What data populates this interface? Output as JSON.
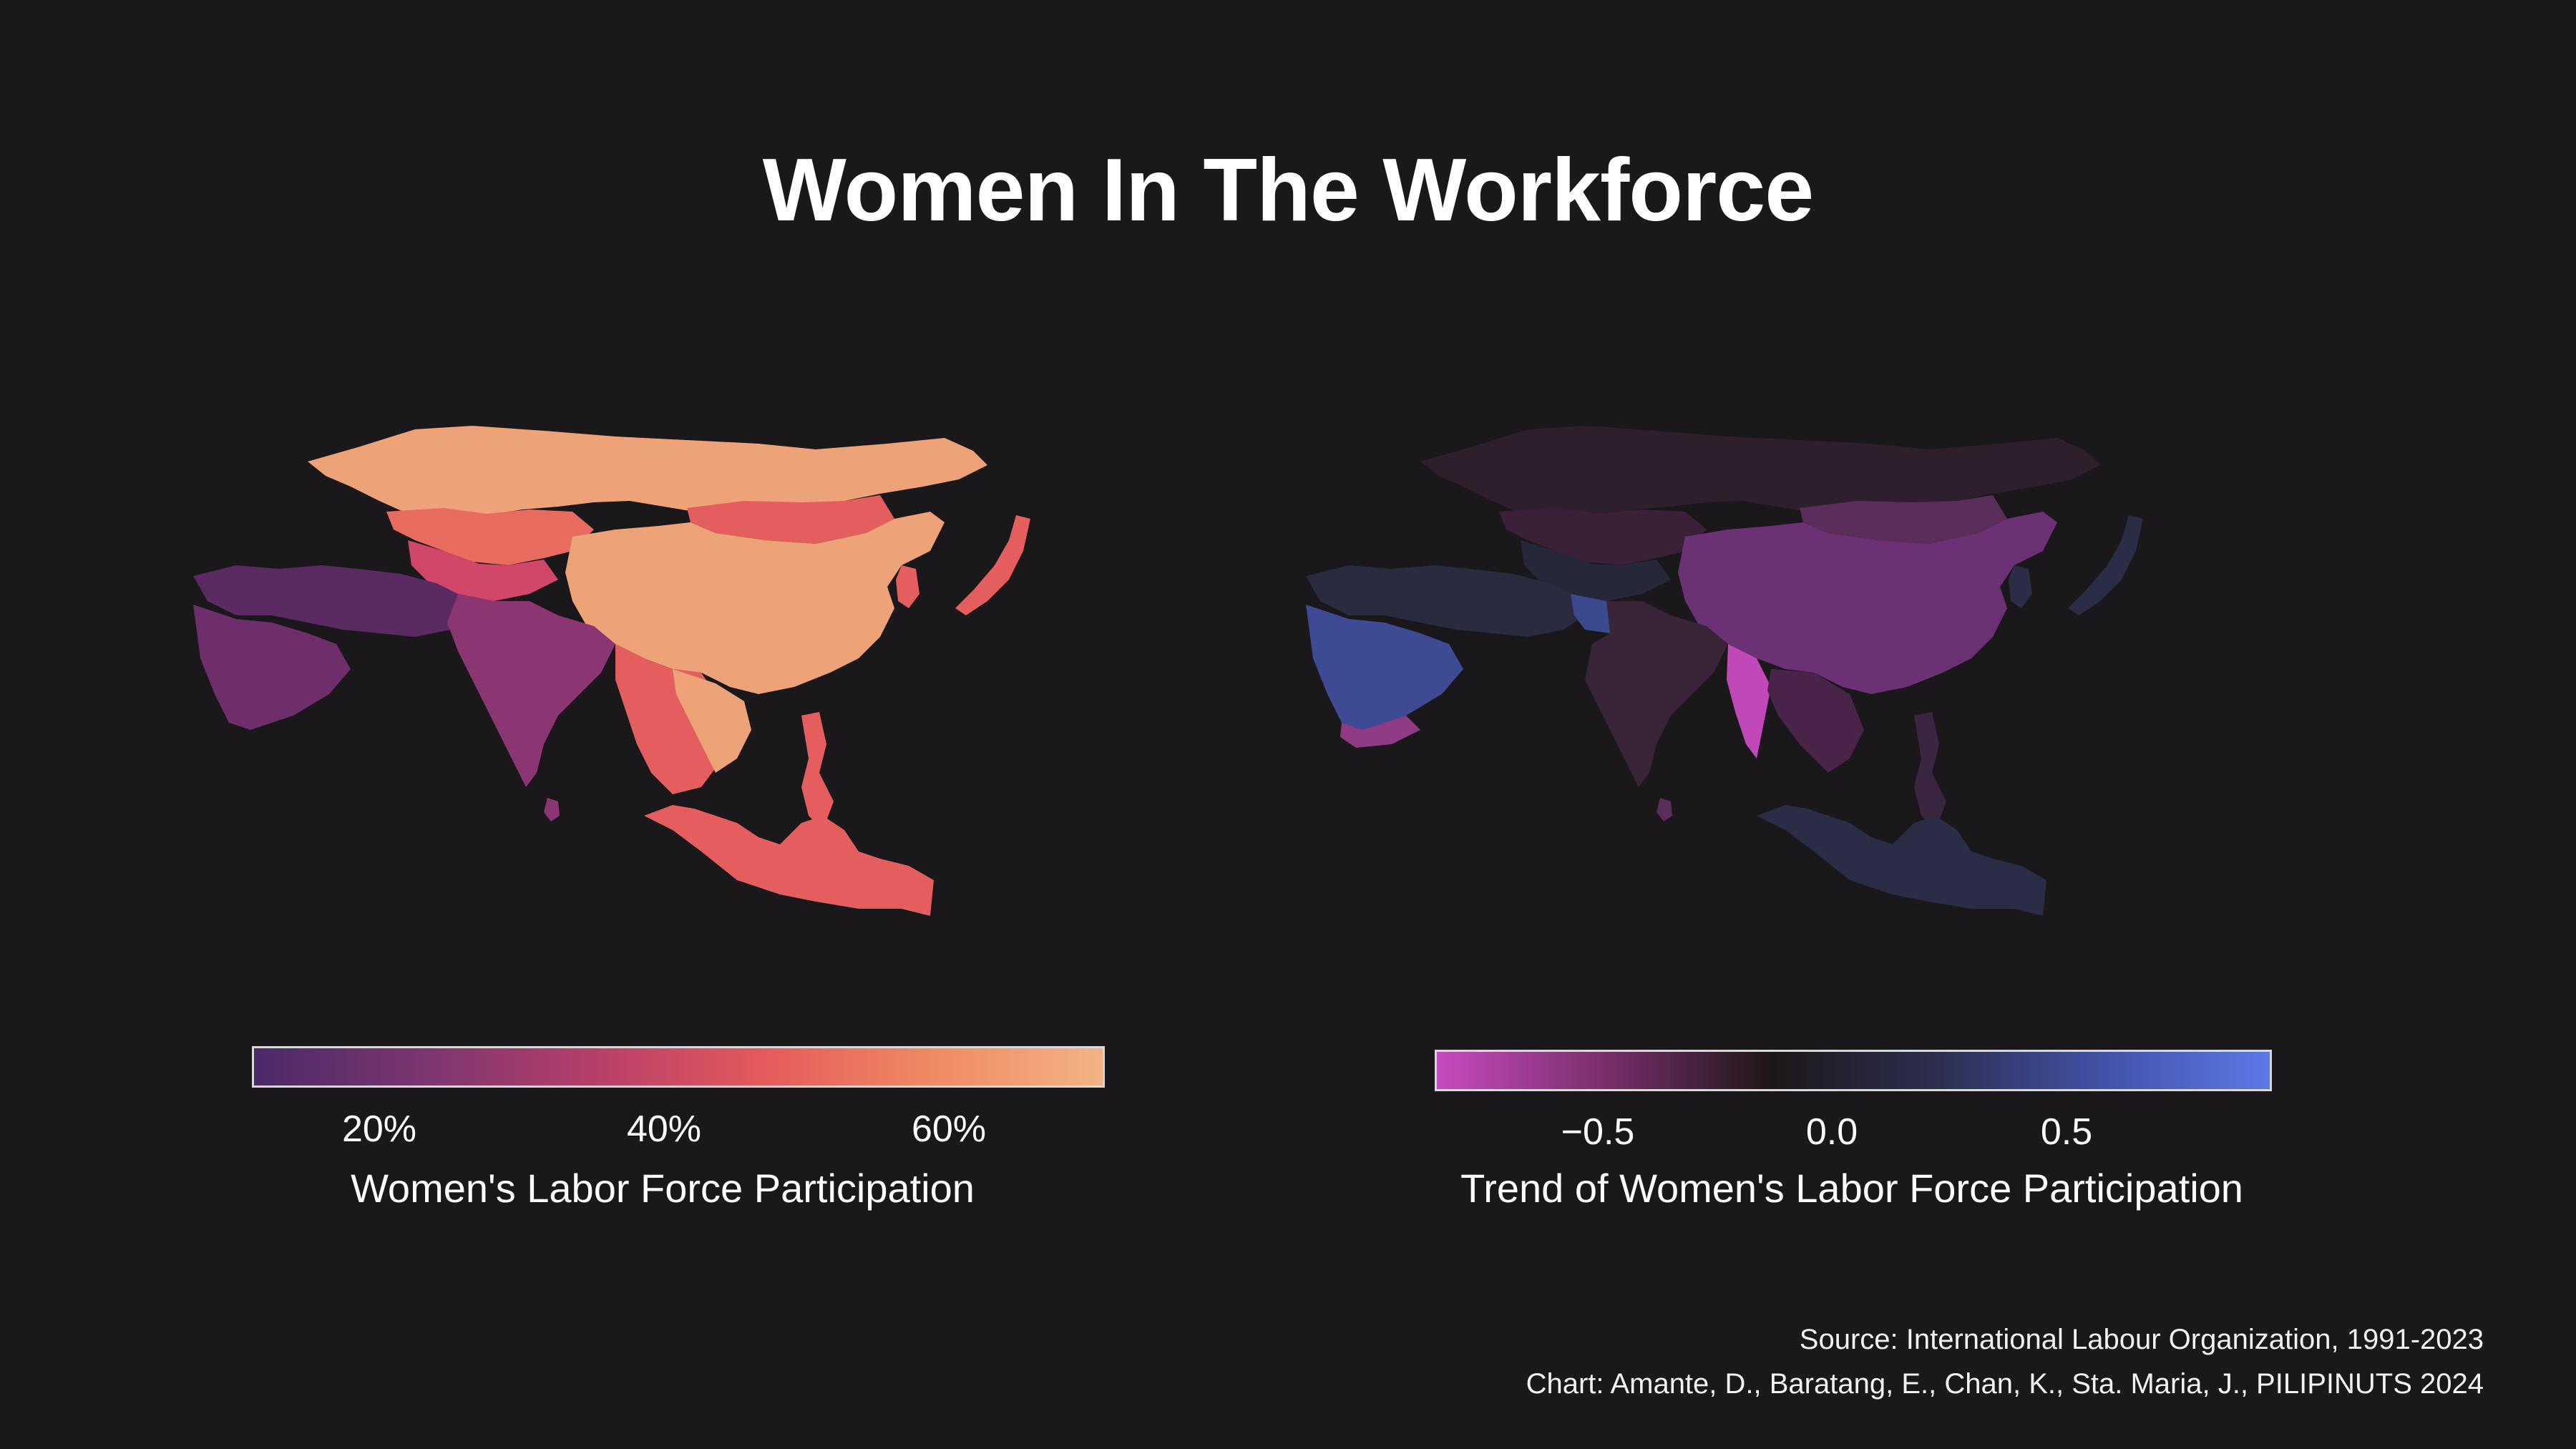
{
  "title": "Women In The Workforce",
  "left_map": {
    "legend_title": "Women's Labor Force Participation",
    "ticks": [
      "20%",
      "40%",
      "60%"
    ],
    "tick_values": [
      20,
      40,
      60
    ],
    "scale_colors": [
      "#4a2a68",
      "#b63f6a",
      "#ef8a63",
      "#f2b384"
    ]
  },
  "right_map": {
    "legend_title": "Trend of Women's Labor Force Participation",
    "ticks": [
      "−0.5",
      "0.0",
      "0.5"
    ],
    "tick_values": [
      -0.5,
      0.0,
      0.5
    ],
    "scale_colors": [
      "#c84bbf",
      "#1e1719",
      "#5b79e8"
    ]
  },
  "footer": {
    "source": "Source: International Labour Organization, 1991-2023",
    "credit": "Chart: Amante, D., Baratang, E., Chan, K., Sta. Maria, J., PILIPINUTS 2024"
  },
  "colors": {
    "background": "#1a181b",
    "text": "#ffffff"
  }
}
